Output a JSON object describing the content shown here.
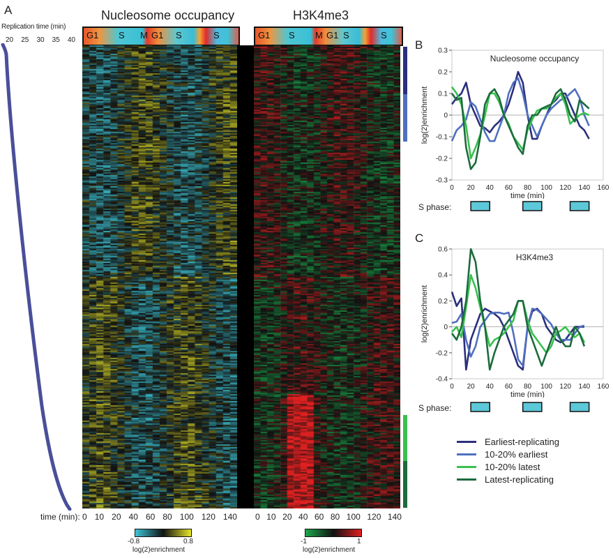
{
  "panel_a": {
    "letter": "A",
    "replication_axis": {
      "label": "Replication time (min)",
      "ticks": [
        "20",
        "25",
        "30",
        "35",
        "40"
      ]
    },
    "heatmap_nucleosome": {
      "title": "Nucleosome occupancy",
      "phase_labels": [
        "G1",
        "S",
        "M",
        "G1",
        "S",
        "S"
      ],
      "colorbar": {
        "min_label": "-0.8",
        "max_label": "0.8",
        "label": "log(2)enrichment",
        "colors": [
          "#3cc6d6",
          "#111111",
          "#e6e62a"
        ]
      }
    },
    "heatmap_h3k4me3": {
      "title": "H3K4me3",
      "phase_labels": [
        "G1",
        "S",
        "M",
        "G1",
        "S",
        "S"
      ],
      "colorbar": {
        "min_label": "-1",
        "max_label": "1",
        "label": "log(2)enrichment",
        "colors": [
          "#1aa84a",
          "#111111",
          "#e02020"
        ]
      }
    },
    "time_axis": {
      "label": "time (min):",
      "ticks_nucleosome": [
        "0",
        "10",
        "20",
        "40",
        "60",
        "80",
        "100",
        "120",
        "140"
      ],
      "ticks_h3k4me3": [
        "0",
        "10",
        "20",
        "40",
        "60",
        "80",
        "100",
        "120",
        "140"
      ]
    }
  },
  "panel_b": {
    "letter": "B",
    "s_phase_label": "S phase:"
  },
  "panel_c": {
    "letter": "C",
    "s_phase_label": "S phase:"
  },
  "legend": {
    "items": [
      {
        "label": "Earliest-replicating",
        "color": "#2b2f7c"
      },
      {
        "label": "10-20% earliest",
        "color": "#4f6fbf"
      },
      {
        "label": "10-20% latest",
        "color": "#39c04f"
      },
      {
        "label": "Latest-replicating",
        "color": "#1c6b3c"
      }
    ]
  },
  "chart_data": [
    {
      "type": "line",
      "title": "Nucleosome occupancy",
      "xlabel": "time (min)",
      "ylabel": "log(2)enrichment",
      "xlim": [
        0,
        160
      ],
      "ylim": [
        -0.3,
        0.3
      ],
      "xticks": [
        0,
        20,
        40,
        60,
        80,
        100,
        120,
        140,
        160
      ],
      "yticks": [
        -0.3,
        -0.2,
        -0.1,
        0,
        0.1,
        0.2,
        0.3
      ],
      "ytick_labels": [
        "-0.3",
        "-0.2",
        "-0.1",
        "0",
        "0.1",
        "0.2",
        "0.3"
      ],
      "x": [
        0,
        5,
        10,
        15,
        20,
        25,
        30,
        35,
        40,
        45,
        50,
        55,
        60,
        65,
        70,
        75,
        80,
        85,
        90,
        95,
        100,
        105,
        110,
        115,
        120,
        125,
        130,
        135,
        140,
        145
      ],
      "series": [
        {
          "name": "Earliest-replicating",
          "color": "#2b2f7c",
          "values": [
            0.05,
            0.08,
            0.1,
            0.15,
            0.05,
            0.0,
            -0.05,
            -0.06,
            -0.08,
            -0.05,
            -0.03,
            0.0,
            0.05,
            0.12,
            0.2,
            0.15,
            0.0,
            -0.11,
            -0.11,
            -0.05,
            0.0,
            0.05,
            0.07,
            0.1,
            0.1,
            0.05,
            0.0,
            -0.05,
            -0.07,
            -0.11
          ]
        },
        {
          "name": "10-20% earliest",
          "color": "#4f6fbf",
          "values": [
            -0.12,
            -0.07,
            -0.05,
            -0.02,
            0.06,
            0.04,
            -0.02,
            -0.08,
            -0.12,
            -0.12,
            -0.06,
            0.0,
            0.1,
            0.15,
            0.17,
            0.1,
            0.0,
            -0.05,
            -0.1,
            -0.05,
            0.0,
            0.03,
            0.05,
            0.07,
            0.08,
            0.1,
            0.12,
            0.08,
            0.0,
            -0.05
          ]
        },
        {
          "name": "10-20% latest",
          "color": "#39c04f",
          "values": [
            0.13,
            0.1,
            0.05,
            -0.05,
            -0.2,
            -0.15,
            -0.09,
            0.0,
            0.1,
            0.1,
            0.06,
            0.0,
            -0.04,
            -0.1,
            -0.13,
            -0.16,
            -0.07,
            -0.02,
            0.02,
            0.03,
            0.03,
            0.05,
            0.08,
            0.1,
            0.05,
            -0.04,
            -0.02,
            0.0,
            0.01,
            0.0
          ]
        },
        {
          "name": "Latest-replicating",
          "color": "#1c6b3c",
          "values": [
            0.1,
            0.07,
            0.08,
            -0.15,
            -0.25,
            -0.22,
            -0.1,
            0.05,
            0.1,
            0.12,
            0.08,
            0.0,
            -0.05,
            -0.1,
            -0.15,
            -0.18,
            -0.05,
            0.0,
            0.0,
            0.03,
            0.04,
            0.05,
            0.1,
            0.12,
            0.07,
            0.0,
            -0.03,
            0.07,
            0.05,
            0.03
          ]
        }
      ],
      "s_phase_intervals": [
        [
          20,
          40
        ],
        [
          75,
          95
        ],
        [
          125,
          145
        ]
      ]
    },
    {
      "type": "line",
      "title": "H3K4me3",
      "xlabel": "time (min)",
      "ylabel": "log(2)enrichment",
      "xlim": [
        0,
        160
      ],
      "ylim": [
        -0.4,
        0.6
      ],
      "xticks": [
        0,
        20,
        40,
        60,
        80,
        100,
        120,
        140,
        160
      ],
      "yticks": [
        -0.4,
        -0.2,
        0,
        0.2,
        0.4,
        0.6
      ],
      "ytick_labels": [
        "-0.4",
        "-0.2",
        "0",
        "0.2",
        "0.4",
        "0.6"
      ],
      "x": [
        0,
        5,
        10,
        15,
        20,
        25,
        30,
        35,
        40,
        45,
        50,
        55,
        60,
        65,
        70,
        75,
        80,
        85,
        90,
        95,
        100,
        105,
        110,
        115,
        120,
        125,
        130,
        135,
        140
      ],
      "series": [
        {
          "name": "Earliest-replicating",
          "color": "#2b2f7c",
          "values": [
            0.27,
            0.16,
            0.22,
            -0.33,
            -0.1,
            0.0,
            0.1,
            0.14,
            0.12,
            0.1,
            0.07,
            0.0,
            -0.1,
            -0.2,
            -0.3,
            -0.33,
            0.0,
            0.12,
            0.14,
            0.1,
            0.0,
            -0.05,
            -0.1,
            -0.12,
            -0.1,
            -0.05,
            0.0,
            0.0,
            0.0
          ]
        },
        {
          "name": "10-20% earliest",
          "color": "#4f6fbf",
          "values": [
            0.03,
            0.04,
            0.1,
            -0.1,
            -0.23,
            -0.15,
            0.0,
            0.05,
            0.1,
            0.11,
            0.11,
            0.1,
            0.11,
            -0.05,
            -0.25,
            -0.3,
            0.0,
            0.14,
            0.13,
            0.1,
            0.06,
            0.02,
            -0.05,
            -0.1,
            -0.1,
            -0.1,
            -0.05,
            0.0,
            0.01
          ]
        },
        {
          "name": "10-20% latest",
          "color": "#39c04f",
          "values": [
            -0.04,
            0.0,
            -0.08,
            0.15,
            0.4,
            0.3,
            0.15,
            0.0,
            -0.15,
            -0.1,
            -0.08,
            -0.05,
            0.0,
            0.05,
            0.2,
            0.2,
            0.05,
            -0.05,
            -0.1,
            -0.15,
            -0.2,
            -0.15,
            -0.05,
            -0.03,
            0.0,
            -0.05,
            -0.08,
            -0.05,
            -0.12
          ]
        },
        {
          "name": "Latest-replicating",
          "color": "#1c6b3c",
          "values": [
            -0.05,
            -0.1,
            0.0,
            0.2,
            0.6,
            0.5,
            0.2,
            0.0,
            -0.33,
            -0.2,
            -0.1,
            0.0,
            0.05,
            0.1,
            0.2,
            0.2,
            0.0,
            -0.1,
            -0.2,
            -0.3,
            -0.2,
            -0.1,
            0.0,
            -0.1,
            -0.15,
            -0.15,
            0.0,
            -0.05,
            -0.15
          ]
        }
      ],
      "s_phase_intervals": [
        [
          20,
          40
        ],
        [
          75,
          95
        ],
        [
          125,
          145
        ]
      ]
    }
  ]
}
